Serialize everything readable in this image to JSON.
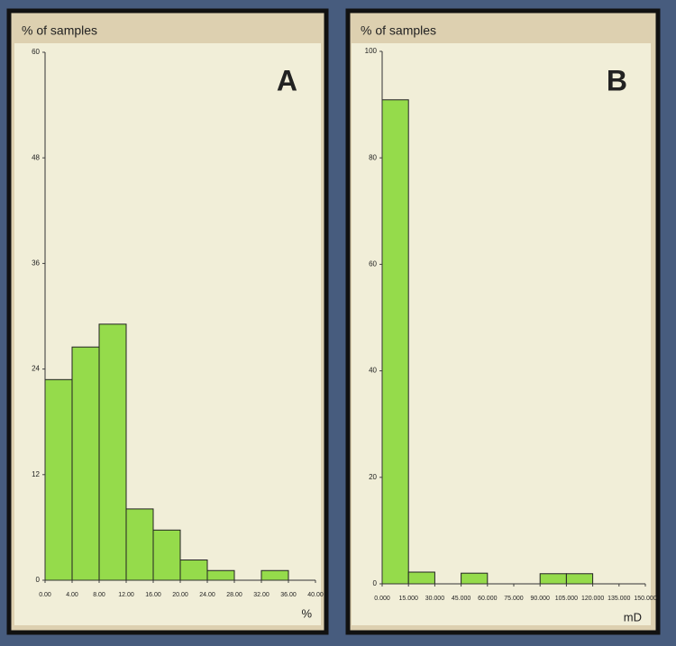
{
  "chart_data": [
    {
      "type": "histogram",
      "title": "% of samples",
      "annotation": "A",
      "xlabel": "%",
      "bins": [
        0,
        4,
        8,
        12,
        16,
        20,
        24,
        28,
        32,
        36,
        40
      ],
      "values": [
        22.8,
        26.5,
        29.1,
        8.1,
        5.7,
        2.3,
        1.1,
        0,
        1.1,
        0
      ],
      "color": "#95db4b",
      "xlim": [
        0,
        40
      ],
      "ylim": [
        0,
        60
      ],
      "xticks": [
        {
          "value": 0,
          "label": "0.00"
        },
        {
          "value": 4,
          "label": "4.00"
        },
        {
          "value": 8,
          "label": "8.00"
        },
        {
          "value": 12,
          "label": "12.00"
        },
        {
          "value": 16,
          "label": "16.00"
        },
        {
          "value": 20,
          "label": "20.00"
        },
        {
          "value": 24,
          "label": "24.00"
        },
        {
          "value": 28,
          "label": "28.00"
        },
        {
          "value": 32,
          "label": "32.00"
        },
        {
          "value": 36,
          "label": "36.00"
        },
        {
          "value": 40,
          "label": "40.00"
        }
      ],
      "yticks": [
        0,
        12,
        24,
        36,
        48,
        60
      ]
    },
    {
      "type": "histogram",
      "title": "% of samples",
      "annotation": "B",
      "xlabel": "mD",
      "bins": [
        0,
        15000,
        30000,
        45000,
        60000,
        75000,
        90000,
        105000,
        120000,
        135000,
        150000
      ],
      "values": [
        90.9,
        2.2,
        0,
        2,
        0,
        0,
        1.9,
        1.9,
        0,
        0
      ],
      "color": "#95db4b",
      "xlim": [
        0,
        150000
      ],
      "ylim": [
        0,
        100
      ],
      "xticks": [
        {
          "value": 0,
          "label": "0.000"
        },
        {
          "value": 15000,
          "label": "15.000"
        },
        {
          "value": 30000,
          "label": "30.000"
        },
        {
          "value": 45000,
          "label": "45.000"
        },
        {
          "value": 60000,
          "label": "60.000"
        },
        {
          "value": 75000,
          "label": "75.000"
        },
        {
          "value": 90000,
          "label": "90.000"
        },
        {
          "value": 105000,
          "label": "105.000"
        },
        {
          "value": 120000,
          "label": "120.000"
        },
        {
          "value": 135000,
          "label": "135.000"
        },
        {
          "value": 150000,
          "label": "150.000"
        }
      ],
      "yticks": [
        0,
        20,
        40,
        60,
        80,
        100
      ]
    }
  ]
}
